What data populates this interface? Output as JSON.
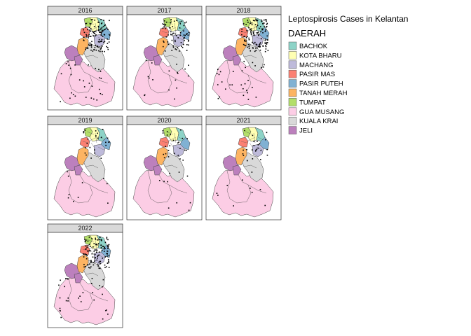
{
  "legend": {
    "title": "Leptospirosis Cases in Kelantan",
    "subtitle": "DAERAH",
    "items": [
      {
        "label": "BACHOK",
        "color": "#8dd3c7"
      },
      {
        "label": "KOTA BHARU",
        "color": "#ffffb3"
      },
      {
        "label": "MACHANG",
        "color": "#bebada"
      },
      {
        "label": "PASIR MAS",
        "color": "#fb8072"
      },
      {
        "label": "PASIR PUTEH",
        "color": "#80b1d3"
      },
      {
        "label": "TANAH MERAH",
        "color": "#fdb462"
      },
      {
        "label": "TUMPAT",
        "color": "#b3de69"
      },
      {
        "label": "GUA MUSANG",
        "color": "#fccde5"
      },
      {
        "label": "KUALA KRAI",
        "color": "#d9d9d9"
      },
      {
        "label": "JELI",
        "color": "#bc80bd"
      }
    ]
  },
  "panels": [
    {
      "year": "2016",
      "cases": "high"
    },
    {
      "year": "2017",
      "cases": "medium"
    },
    {
      "year": "2018",
      "cases": "high"
    },
    {
      "year": "2019",
      "cases": "low"
    },
    {
      "year": "2020",
      "cases": "low"
    },
    {
      "year": "2021",
      "cases": "low"
    },
    {
      "year": "2022",
      "cases": "high"
    }
  ]
}
